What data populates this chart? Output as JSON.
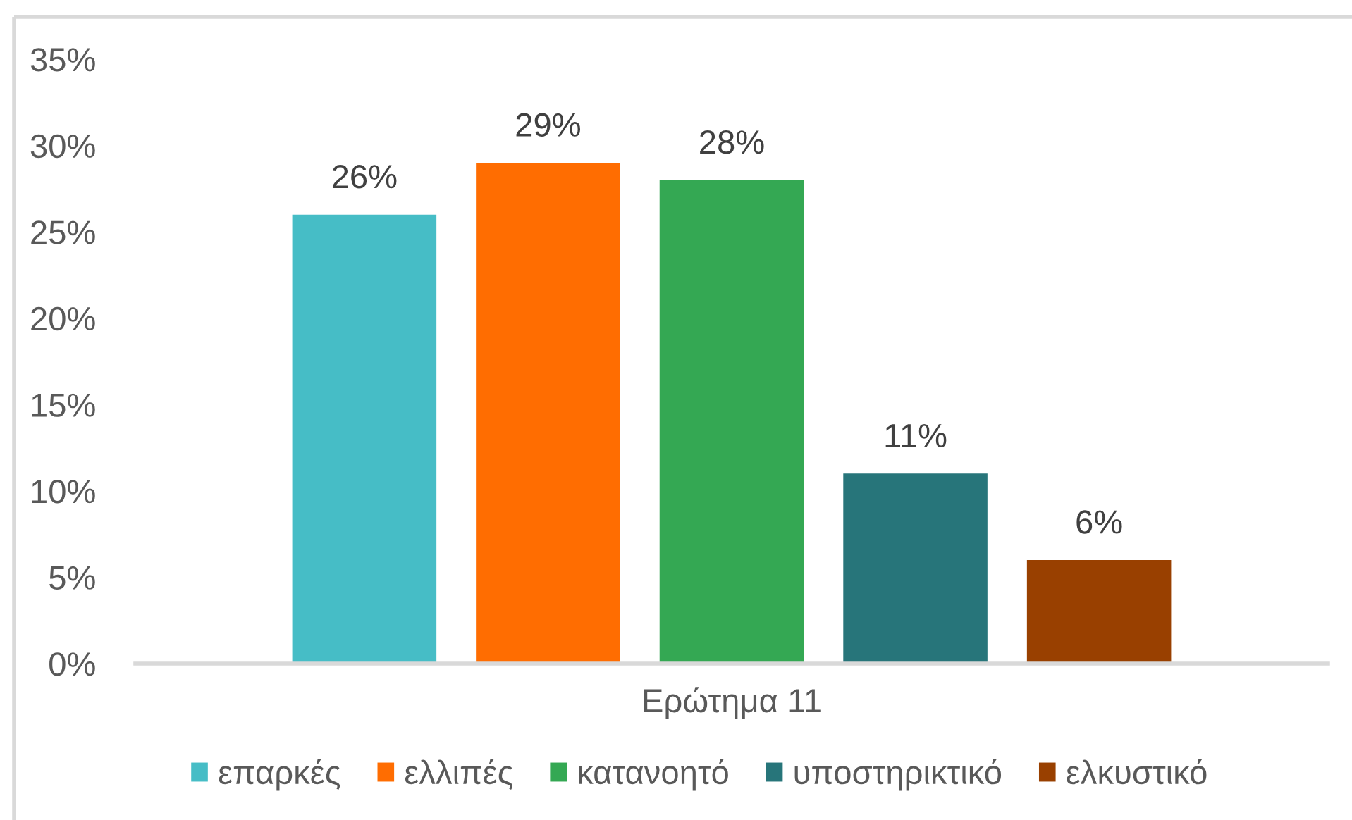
{
  "chart_data": {
    "type": "bar",
    "categories": [
      "Ερώτημα 11"
    ],
    "series": [
      {
        "name": "επαρκές",
        "color": "#46bdc6",
        "values": [
          26
        ],
        "value_labels": [
          "26%"
        ]
      },
      {
        "name": "ελλιπές",
        "color": "#ff6d01",
        "values": [
          29
        ],
        "value_labels": [
          "29%"
        ]
      },
      {
        "name": "κατανοητό",
        "color": "#34a853",
        "values": [
          28
        ],
        "value_labels": [
          "28%"
        ]
      },
      {
        "name": "υποστηρικτικό",
        "color": "#27757a",
        "values": [
          11
        ],
        "value_labels": [
          "11%"
        ]
      },
      {
        "name": "ελκυστικό",
        "color": "#994000",
        "values": [
          6
        ],
        "value_labels": [
          "6%"
        ]
      }
    ],
    "ylim": [
      0,
      35
    ],
    "yticks": [
      {
        "value": 0,
        "label": "0%"
      },
      {
        "value": 5,
        "label": "5%"
      },
      {
        "value": 10,
        "label": "10%"
      },
      {
        "value": 15,
        "label": "15%"
      },
      {
        "value": 20,
        "label": "20%"
      },
      {
        "value": 25,
        "label": "25%"
      },
      {
        "value": 30,
        "label": "30%"
      },
      {
        "value": 35,
        "label": "35%"
      }
    ],
    "grid": false,
    "legend": "bottom"
  }
}
